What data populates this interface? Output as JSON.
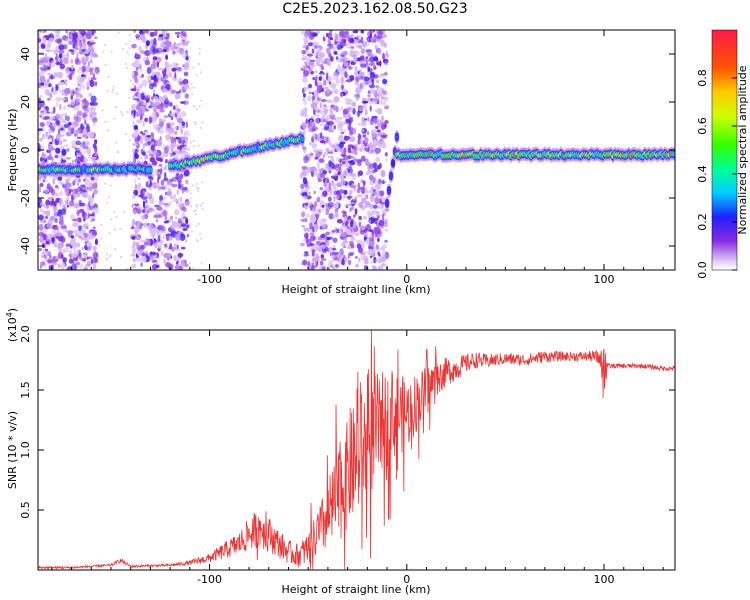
{
  "title": "C2E5.2023.162.08.50.G23",
  "chart_data": [
    {
      "type": "heatmap",
      "name": "spectrogram",
      "xlabel": "Height of straight line (km)",
      "ylabel": "Frequency (Hz)",
      "xlim": [
        -187,
        136
      ],
      "ylim": [
        -50,
        50
      ],
      "xticks": [
        -100,
        0,
        100
      ],
      "yticks": [
        -40,
        -20,
        0,
        20,
        40
      ],
      "colorbar": {
        "label": "Normalized spectral amplitude",
        "range": [
          0.0,
          1.0
        ],
        "ticks": [
          0.0,
          0.2,
          0.4,
          0.6,
          0.8
        ],
        "tick_labels": [
          "0.0",
          "0.2",
          "0.4",
          "0.6",
          "0.8"
        ]
      },
      "features": {
        "noise_bands_x": [
          [
            -187,
            -157
          ],
          [
            -139,
            -111
          ],
          [
            -53,
            -10
          ]
        ],
        "carrier_segments": [
          {
            "x": [
              -187,
              -130
            ],
            "freq": -8,
            "amplitude": 0.7
          },
          {
            "x": [
              -120,
              -53
            ],
            "freq": -7,
            "freq_end": 5,
            "amplitude": 0.8
          },
          {
            "x": [
              -10,
              -5
            ],
            "freq": -22,
            "freq_end": 5,
            "amplitude": 0.4
          },
          {
            "x": [
              -5,
              136
            ],
            "freq": -2,
            "amplitude": 0.9
          }
        ]
      }
    },
    {
      "type": "line",
      "name": "snr",
      "xlabel": "Height of straight line (km)",
      "ylabel": "SNR (10 * v/v)",
      "scale_label": "(x10",
      "scale_exponent": "4",
      "scale_suffix": ")",
      "xlim": [
        -187,
        136
      ],
      "ylim": [
        0,
        2.0
      ],
      "xticks": [
        -100,
        0,
        100
      ],
      "yticks": [
        0.5,
        1.0,
        1.5,
        2.0
      ],
      "ytick_labels": [
        "0.5",
        "1.0",
        "1.5",
        "2.0"
      ],
      "color": "#ee3333",
      "series": [
        {
          "x": [
            -187,
            -170,
            -150,
            -145,
            -140,
            -120,
            -110,
            -100,
            -90,
            -85,
            -80,
            -75,
            -70,
            -65,
            -60,
            -55,
            -50,
            -45,
            -40,
            -35,
            -30,
            -25,
            -20,
            -15,
            -10,
            -5,
            0,
            5,
            10,
            15,
            20,
            25,
            30,
            35,
            40,
            50,
            60,
            70,
            80,
            90,
            95,
            100,
            102,
            110,
            120,
            130,
            136
          ],
          "y": [
            0.02,
            0.02,
            0.04,
            0.08,
            0.03,
            0.04,
            0.06,
            0.1,
            0.18,
            0.22,
            0.3,
            0.35,
            0.3,
            0.22,
            0.15,
            0.12,
            0.18,
            0.3,
            0.45,
            0.6,
            0.8,
            0.95,
            1.05,
            1.2,
            1.25,
            1.3,
            1.3,
            1.4,
            1.5,
            1.6,
            1.65,
            1.68,
            1.72,
            1.75,
            1.74,
            1.76,
            1.75,
            1.78,
            1.78,
            1.78,
            1.78,
            1.75,
            1.7,
            1.7,
            1.7,
            1.68,
            1.68
          ],
          "noise": [
            0.01,
            0.01,
            0.01,
            0.02,
            0.01,
            0.01,
            0.02,
            0.04,
            0.08,
            0.1,
            0.14,
            0.16,
            0.15,
            0.12,
            0.1,
            0.1,
            0.14,
            0.2,
            0.3,
            0.4,
            0.45,
            0.5,
            0.5,
            0.45,
            0.4,
            0.35,
            0.3,
            0.25,
            0.2,
            0.15,
            0.12,
            0.1,
            0.08,
            0.07,
            0.06,
            0.05,
            0.05,
            0.05,
            0.04,
            0.04,
            0.05,
            0.08,
            0.02,
            0.02,
            0.02,
            0.02,
            0.02
          ]
        }
      ]
    }
  ]
}
